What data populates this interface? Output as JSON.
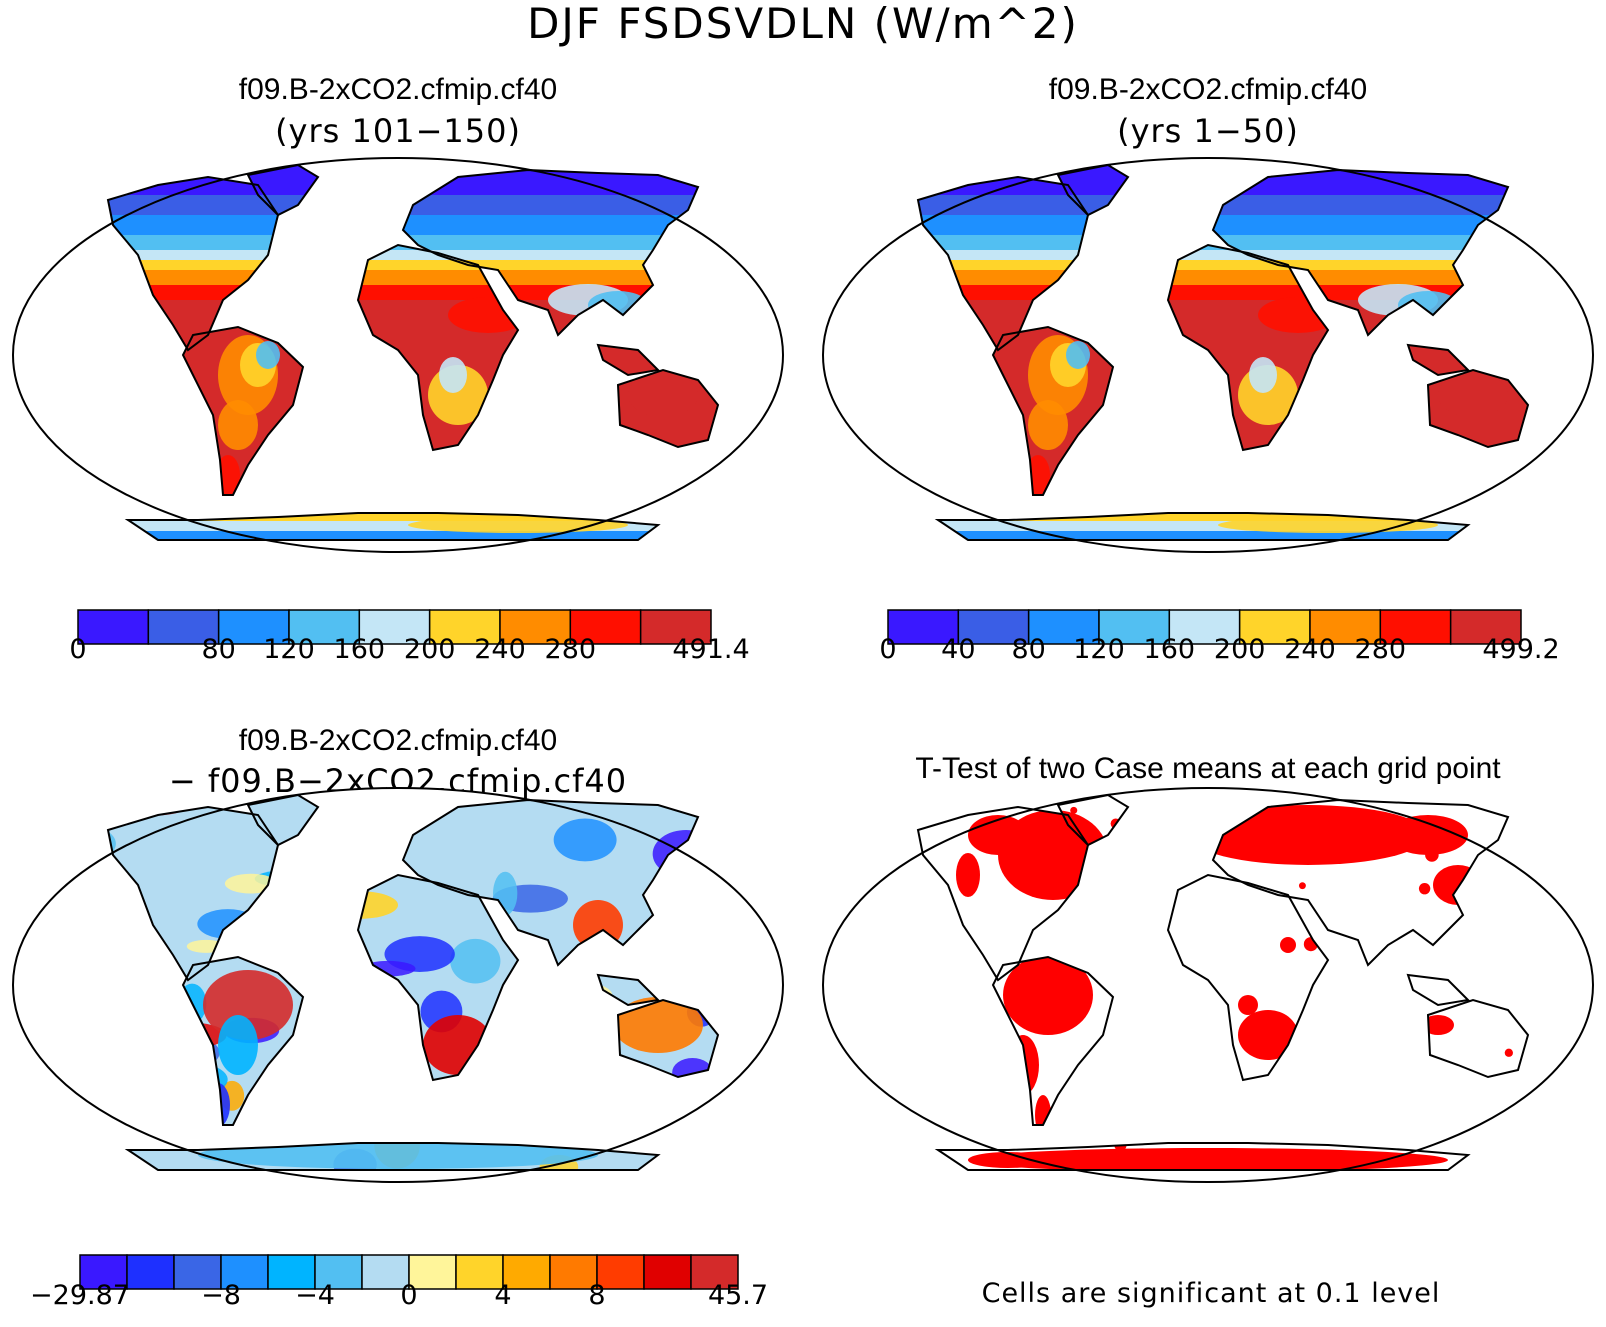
{
  "figure": {
    "title": "DJF FSDSVDLN (W/m^2)"
  },
  "panels": [
    {
      "title": "f09.B-2xCO2.cfmip.cf40",
      "subtitle": "(yrs 101−150)",
      "colorbar": {
        "colors": [
          "#3a18ff",
          "#3a5ee6",
          "#1e90ff",
          "#52bff2",
          "#c4e6f6",
          "#ffd42a",
          "#ff8c00",
          "#ff0f00",
          "#d42a2a"
        ],
        "tick_labels": [
          "0",
          "",
          "80",
          "120",
          "160",
          "200",
          "240",
          "280",
          "",
          "491.4"
        ]
      }
    },
    {
      "title": "f09.B-2xCO2.cfmip.cf40",
      "subtitle": "(yrs 1−50)",
      "colorbar": {
        "colors": [
          "#3a18ff",
          "#3a5ee6",
          "#1e90ff",
          "#52bff2",
          "#c4e6f6",
          "#ffd42a",
          "#ff8c00",
          "#ff0f00",
          "#d42a2a"
        ],
        "tick_labels": [
          "0",
          "40",
          "80",
          "120",
          "160",
          "200",
          "240",
          "280",
          "",
          "499.2"
        ]
      }
    },
    {
      "title": "f09.B-2xCO2.cfmip.cf40",
      "subtitle": "− f09.B−2xCO2.cfmip.cf40",
      "colorbar": {
        "colors": [
          "#3a18ff",
          "#1e30ff",
          "#3a66e6",
          "#1e90ff",
          "#00b4ff",
          "#52bff2",
          "#b4dcf2",
          "#fff59a",
          "#ffd42a",
          "#ffaa00",
          "#ff7a00",
          "#ff3c00",
          "#e00000",
          "#d42a2a"
        ],
        "tick_labels": [
          "−29.87",
          "",
          "",
          "−8",
          "",
          "−4",
          "",
          "0",
          "",
          "4",
          "",
          "8",
          "",
          "",
          "45.7"
        ]
      }
    },
    {
      "title": "T-Test of two Case means at each grid point",
      "note": "Cells are significant at 0.1 level",
      "significant_color": "#ff0000"
    }
  ]
}
